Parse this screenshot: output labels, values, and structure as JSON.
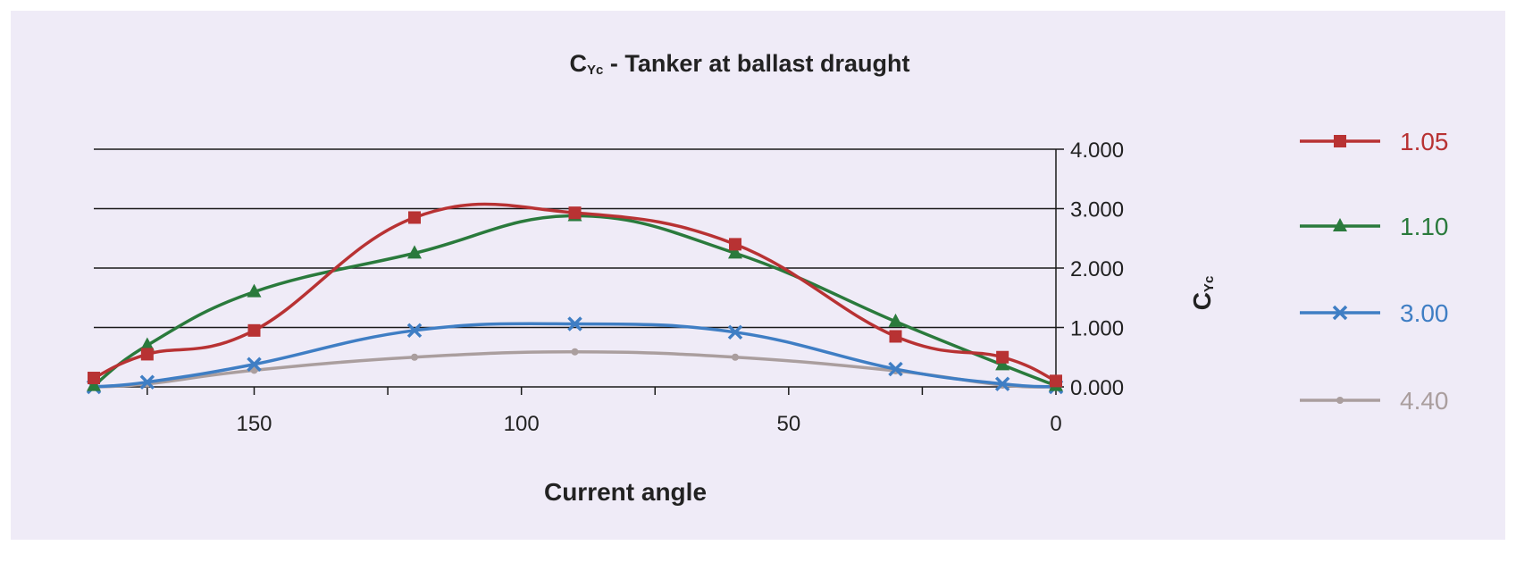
{
  "chart_data": {
    "type": "line",
    "title": "C",
    "title_sub": "Yc",
    "title_rest": " - Tanker at ballast draught",
    "xlabel": "Current angle",
    "ylabel": "C",
    "ylabel_sub": "Yc",
    "x_reversed": true,
    "xlim": [
      180,
      0
    ],
    "ylim": [
      0,
      4
    ],
    "x_ticks": [
      150,
      100,
      50,
      0
    ],
    "x_tick_labels": [
      "150",
      "100",
      "50",
      "0"
    ],
    "y_ticks": [
      0,
      1,
      2,
      3,
      4
    ],
    "y_tick_labels": [
      "0.000",
      "1.000",
      "2.000",
      "3.000",
      "4.000"
    ],
    "y_axis_position": "right",
    "grid": "horizontal",
    "legend_position": "right",
    "x": [
      180,
      170,
      150,
      120,
      90,
      60,
      30,
      10,
      0
    ],
    "series": [
      {
        "name": "1.05",
        "color": "#b83233",
        "marker": "square",
        "values": [
          0.15,
          0.55,
          0.95,
          2.85,
          2.93,
          2.4,
          0.85,
          0.5,
          0.1
        ]
      },
      {
        "name": "1.10",
        "color": "#2a7a3c",
        "marker": "triangle",
        "values": [
          0.02,
          0.7,
          1.6,
          2.25,
          2.88,
          2.25,
          1.1,
          0.37,
          0.02
        ]
      },
      {
        "name": "3.00",
        "color": "#3f7ec4",
        "marker": "x",
        "values": [
          0.0,
          0.08,
          0.38,
          0.95,
          1.06,
          0.92,
          0.3,
          0.05,
          0.0
        ]
      },
      {
        "name": "4.40",
        "color": "#aa9e9e",
        "marker": "dot",
        "values": [
          0.0,
          0.05,
          0.28,
          0.5,
          0.59,
          0.5,
          0.27,
          0.03,
          0.0
        ]
      }
    ]
  }
}
